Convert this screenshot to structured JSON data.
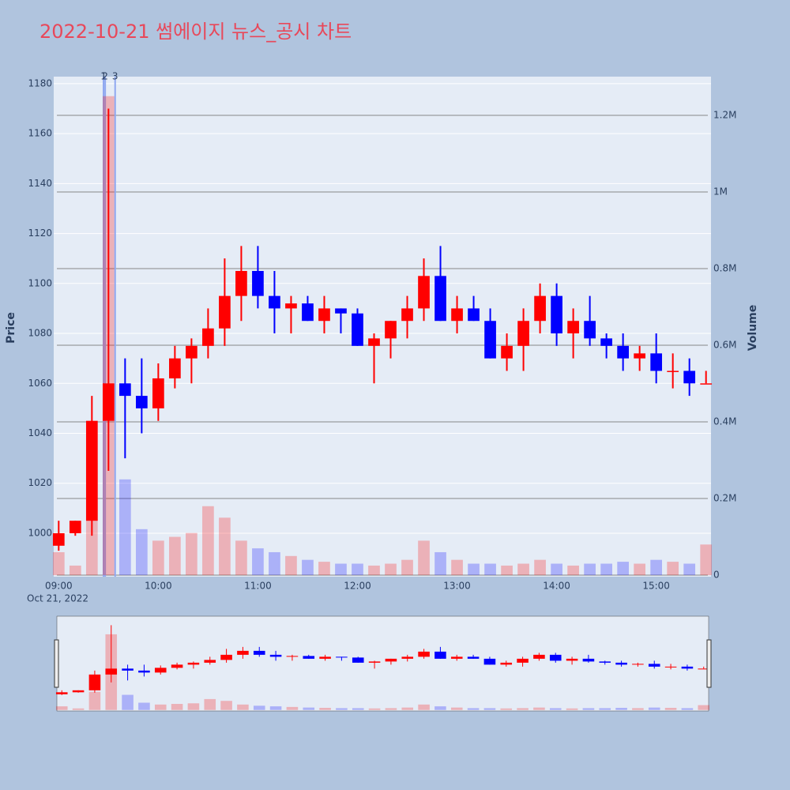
{
  "chart_data": {
    "type": "candlestick",
    "title": "2022-10-21 썸에이지 뉴스_공시 차트",
    "yaxis_title": "Price",
    "y2axis_title": "Volume",
    "date_label": "Oct 21, 2022",
    "x": [
      "09:00",
      "09:10",
      "09:20",
      "09:30",
      "09:40",
      "09:50",
      "10:00",
      "10:10",
      "10:20",
      "10:30",
      "10:40",
      "10:50",
      "11:00",
      "11:10",
      "11:20",
      "11:30",
      "11:40",
      "11:50",
      "12:00",
      "12:10",
      "12:20",
      "12:30",
      "12:40",
      "12:50",
      "13:00",
      "13:10",
      "13:20",
      "13:30",
      "13:40",
      "13:50",
      "14:00",
      "14:10",
      "14:20",
      "14:30",
      "14:40",
      "14:50",
      "15:00",
      "15:10",
      "15:20",
      "15:30"
    ],
    "open": [
      995,
      1000,
      1005,
      1045,
      1060,
      1055,
      1050,
      1062,
      1070,
      1075,
      1082,
      1095,
      1105,
      1095,
      1090,
      1092,
      1085,
      1090,
      1088,
      1075,
      1078,
      1085,
      1090,
      1103,
      1085,
      1090,
      1085,
      1070,
      1075,
      1085,
      1095,
      1080,
      1085,
      1078,
      1075,
      1070,
      1072,
      1065,
      1065,
      1060
    ],
    "high": [
      1005,
      1005,
      1055,
      1170,
      1070,
      1070,
      1068,
      1075,
      1078,
      1090,
      1110,
      1115,
      1115,
      1105,
      1095,
      1095,
      1095,
      1090,
      1090,
      1080,
      1085,
      1095,
      1110,
      1115,
      1095,
      1095,
      1090,
      1080,
      1090,
      1100,
      1100,
      1090,
      1095,
      1080,
      1080,
      1075,
      1080,
      1072,
      1070,
      1065
    ],
    "low": [
      993,
      999,
      999,
      1025,
      1030,
      1040,
      1045,
      1058,
      1060,
      1070,
      1075,
      1085,
      1090,
      1080,
      1080,
      1085,
      1080,
      1080,
      1075,
      1060,
      1070,
      1078,
      1085,
      1085,
      1080,
      1085,
      1070,
      1065,
      1065,
      1080,
      1075,
      1070,
      1075,
      1070,
      1065,
      1065,
      1060,
      1058,
      1055,
      1060
    ],
    "close": [
      1000,
      1005,
      1045,
      1060,
      1055,
      1050,
      1062,
      1070,
      1075,
      1082,
      1095,
      1105,
      1095,
      1090,
      1092,
      1085,
      1090,
      1088,
      1075,
      1078,
      1085,
      1090,
      1103,
      1085,
      1090,
      1085,
      1070,
      1075,
      1085,
      1095,
      1080,
      1085,
      1078,
      1075,
      1070,
      1072,
      1065,
      1065,
      1060,
      1060
    ],
    "volume": [
      60000,
      25000,
      300000,
      1250000,
      250000,
      120000,
      90000,
      100000,
      110000,
      180000,
      150000,
      90000,
      70000,
      60000,
      50000,
      40000,
      35000,
      30000,
      30000,
      25000,
      30000,
      40000,
      90000,
      60000,
      40000,
      30000,
      30000,
      25000,
      30000,
      40000,
      30000,
      25000,
      30000,
      30000,
      35000,
      30000,
      40000,
      35000,
      30000,
      80000
    ],
    "increasing_color": "#ff0000",
    "decreasing_color": "#0000ff",
    "xlim": [
      "08:57",
      "15:33"
    ],
    "xticks": [
      "09:00",
      "10:00",
      "11:00",
      "12:00",
      "13:00",
      "14:00",
      "15:00"
    ],
    "ylim": [
      982.6,
      1182.8
    ],
    "yticks": [
      1000,
      1020,
      1040,
      1060,
      1080,
      1100,
      1120,
      1140,
      1160,
      1180
    ],
    "y2lim": [
      -4000,
      1301000
    ],
    "y2ticks": [
      0,
      {
        "value": 200000,
        "label": "0.2M"
      },
      {
        "value": 400000,
        "label": "0.4M"
      },
      {
        "value": 600000,
        "label": "0.6M"
      },
      {
        "value": 800000,
        "label": "0.8M"
      },
      {
        "value": 1000000,
        "label": "1M"
      },
      {
        "value": 1200000,
        "label": "1.2M"
      }
    ],
    "annotations": [
      {
        "text": "1",
        "x": "09:27"
      },
      {
        "text": "2",
        "x": "09:28"
      },
      {
        "text": "3",
        "x": "09:34"
      }
    ],
    "grid": true,
    "rangeslider": true
  }
}
